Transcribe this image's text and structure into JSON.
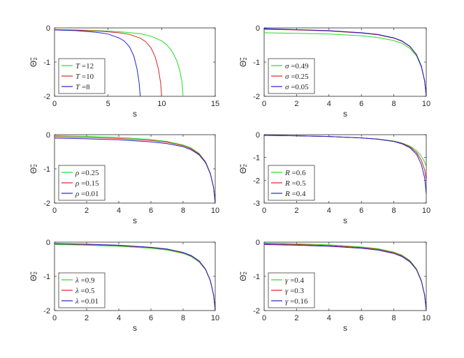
{
  "chart_data": [
    {
      "type": "line",
      "panel": "top-left",
      "xlabel": "s",
      "ylabel": "Θ̃₂",
      "xlim": [
        0,
        15
      ],
      "ylim": [
        -2,
        0
      ],
      "xticks": [
        0,
        5,
        10,
        15
      ],
      "yticks": [
        0,
        -1,
        -2
      ],
      "legend": "bottom-left",
      "series": [
        {
          "name": "T =12",
          "symbol": "T",
          "value": "=12",
          "color": "#22dd22",
          "x": [
            0,
            2,
            4,
            6,
            8,
            9,
            10,
            10.5,
            11,
            11.4,
            11.7,
            11.9,
            12
          ],
          "y": [
            -0.05,
            -0.06,
            -0.08,
            -0.11,
            -0.17,
            -0.24,
            -0.38,
            -0.5,
            -0.7,
            -0.95,
            -1.25,
            -1.6,
            -2.0
          ]
        },
        {
          "name": "T =10",
          "symbol": "T",
          "value": "=10",
          "color": "#dd2222",
          "x": [
            0,
            2,
            4,
            6,
            7,
            8,
            8.5,
            9,
            9.4,
            9.7,
            9.9,
            10
          ],
          "y": [
            -0.05,
            -0.07,
            -0.09,
            -0.14,
            -0.19,
            -0.3,
            -0.4,
            -0.58,
            -0.85,
            -1.2,
            -1.6,
            -2.0
          ]
        },
        {
          "name": "T =8",
          "symbol": "T",
          "value": "=8",
          "color": "#2222cc",
          "x": [
            0,
            2,
            4,
            5,
            6,
            6.5,
            7,
            7.4,
            7.7,
            7.9,
            8
          ],
          "y": [
            -0.06,
            -0.08,
            -0.13,
            -0.18,
            -0.29,
            -0.38,
            -0.55,
            -0.82,
            -1.2,
            -1.6,
            -2.0
          ]
        }
      ]
    },
    {
      "type": "line",
      "panel": "top-right",
      "xlabel": "s",
      "ylabel": "Θ̃₂",
      "xlim": [
        0,
        10
      ],
      "ylim": [
        -2,
        0
      ],
      "xticks": [
        0,
        2,
        4,
        6,
        8,
        10
      ],
      "yticks": [
        0,
        -1,
        -2
      ],
      "legend": "bottom-left",
      "series": [
        {
          "name": "σ =0.49",
          "symbol": "σ",
          "value": "=0.49",
          "color": "#22dd22",
          "x": [
            0,
            2,
            4,
            6,
            7,
            8,
            8.5,
            9,
            9.4,
            9.7,
            9.9,
            10
          ],
          "y": [
            -0.14,
            -0.16,
            -0.18,
            -0.23,
            -0.28,
            -0.37,
            -0.45,
            -0.6,
            -0.82,
            -1.15,
            -1.55,
            -2.0
          ]
        },
        {
          "name": "σ =0.25",
          "symbol": "σ",
          "value": "=0.25",
          "color": "#dd2222",
          "x": [
            0,
            2,
            4,
            6,
            7,
            8,
            8.5,
            9,
            9.4,
            9.7,
            9.9,
            10
          ],
          "y": [
            -0.04,
            -0.06,
            -0.09,
            -0.15,
            -0.2,
            -0.3,
            -0.39,
            -0.55,
            -0.79,
            -1.13,
            -1.55,
            -2.0
          ]
        },
        {
          "name": "σ =0.05",
          "symbol": "σ",
          "value": "=0.05",
          "color": "#2222cc",
          "x": [
            0,
            2,
            4,
            6,
            7,
            8,
            8.5,
            9,
            9.4,
            9.7,
            9.9,
            10
          ],
          "y": [
            -0.02,
            -0.05,
            -0.08,
            -0.14,
            -0.19,
            -0.29,
            -0.38,
            -0.54,
            -0.78,
            -1.12,
            -1.55,
            -2.0
          ]
        }
      ]
    },
    {
      "type": "line",
      "panel": "middle-left",
      "xlabel": "s",
      "ylabel": "Θ̃₂",
      "xlim": [
        0,
        10
      ],
      "ylim": [
        -2,
        0
      ],
      "xticks": [
        0,
        2,
        4,
        6,
        8,
        10
      ],
      "yticks": [
        0,
        -1,
        -2
      ],
      "legend": "bottom-left",
      "series": [
        {
          "name": "ρ =0.25",
          "symbol": "ρ",
          "value": "=0.25",
          "color": "#22dd22",
          "x": [
            0,
            2,
            4,
            6,
            7,
            8,
            8.5,
            9,
            9.4,
            9.7,
            9.9,
            10
          ],
          "y": [
            -0.03,
            -0.05,
            -0.08,
            -0.14,
            -0.2,
            -0.3,
            -0.39,
            -0.55,
            -0.79,
            -1.13,
            -1.55,
            -2.0
          ]
        },
        {
          "name": "ρ =0.15",
          "symbol": "ρ",
          "value": "=0.15",
          "color": "#dd2222",
          "x": [
            0,
            2,
            4,
            6,
            7,
            8,
            8.5,
            9,
            9.4,
            9.7,
            9.9,
            10
          ],
          "y": [
            -0.06,
            -0.08,
            -0.11,
            -0.17,
            -0.22,
            -0.32,
            -0.41,
            -0.57,
            -0.8,
            -1.14,
            -1.55,
            -2.0
          ]
        },
        {
          "name": "ρ =0.01",
          "symbol": "ρ",
          "value": "=0.01",
          "color": "#2222cc",
          "x": [
            0,
            2,
            4,
            6,
            7,
            8,
            8.5,
            9,
            9.4,
            9.7,
            9.9,
            10
          ],
          "y": [
            -0.1,
            -0.12,
            -0.15,
            -0.21,
            -0.26,
            -0.35,
            -0.44,
            -0.59,
            -0.82,
            -1.15,
            -1.55,
            -2.0
          ]
        }
      ]
    },
    {
      "type": "line",
      "panel": "middle-right",
      "xlabel": "s",
      "ylabel": "Θ̃₂",
      "xlim": [
        0,
        10
      ],
      "ylim": [
        -3,
        0
      ],
      "xticks": [
        0,
        2,
        4,
        6,
        8,
        10
      ],
      "yticks": [
        0,
        -1,
        -2,
        -3
      ],
      "legend": "bottom-left",
      "series": [
        {
          "name": "R =0.6",
          "symbol": "R",
          "value": "=0.6",
          "color": "#22dd22",
          "x": [
            0,
            2,
            4,
            6,
            7,
            8,
            8.5,
            9,
            9.4,
            9.7,
            9.9,
            10
          ],
          "y": [
            -0.03,
            -0.05,
            -0.08,
            -0.14,
            -0.19,
            -0.28,
            -0.36,
            -0.5,
            -0.7,
            -0.95,
            -1.2,
            -1.4
          ]
        },
        {
          "name": "R =0.5",
          "symbol": "R",
          "value": "=0.5",
          "color": "#dd2222",
          "x": [
            0,
            2,
            4,
            6,
            7,
            8,
            8.5,
            9,
            9.4,
            9.7,
            9.9,
            10
          ],
          "y": [
            -0.03,
            -0.05,
            -0.08,
            -0.14,
            -0.19,
            -0.29,
            -0.38,
            -0.54,
            -0.78,
            -1.12,
            -1.55,
            -2.0
          ]
        },
        {
          "name": "R =0.4",
          "symbol": "R",
          "value": "=0.4",
          "color": "#2222cc",
          "x": [
            0,
            2,
            4,
            6,
            7,
            8,
            8.5,
            9,
            9.4,
            9.7,
            9.9,
            10
          ],
          "y": [
            -0.03,
            -0.05,
            -0.08,
            -0.14,
            -0.2,
            -0.3,
            -0.4,
            -0.58,
            -0.86,
            -1.3,
            -1.9,
            -2.6
          ]
        }
      ]
    },
    {
      "type": "line",
      "panel": "bottom-left",
      "xlabel": "s",
      "ylabel": "Θ̃₂",
      "xlim": [
        0,
        10
      ],
      "ylim": [
        -2,
        0
      ],
      "xticks": [
        0,
        2,
        4,
        6,
        8,
        10
      ],
      "yticks": [
        0,
        -1,
        -2
      ],
      "legend": "bottom-left",
      "series": [
        {
          "name": "λ =0.9",
          "symbol": "λ",
          "value": "=0.9",
          "color": "#22dd22",
          "x": [
            0,
            2,
            4,
            6,
            7,
            8,
            8.5,
            9,
            9.4,
            9.7,
            9.9,
            10
          ],
          "y": [
            -0.07,
            -0.09,
            -0.12,
            -0.18,
            -0.23,
            -0.33,
            -0.42,
            -0.58,
            -0.81,
            -1.14,
            -1.55,
            -2.0
          ]
        },
        {
          "name": "λ =0.5",
          "symbol": "λ",
          "value": "=0.5",
          "color": "#dd2222",
          "x": [
            0,
            2,
            4,
            6,
            7,
            8,
            8.5,
            9,
            9.4,
            9.7,
            9.9,
            10
          ],
          "y": [
            -0.05,
            -0.07,
            -0.1,
            -0.16,
            -0.21,
            -0.31,
            -0.4,
            -0.56,
            -0.8,
            -1.13,
            -1.55,
            -2.0
          ]
        },
        {
          "name": "λ =0.01",
          "symbol": "λ",
          "value": "=0.01",
          "color": "#2222cc",
          "x": [
            0,
            2,
            4,
            6,
            7,
            8,
            8.5,
            9,
            9.4,
            9.7,
            9.9,
            10
          ],
          "y": [
            -0.04,
            -0.06,
            -0.09,
            -0.15,
            -0.2,
            -0.3,
            -0.39,
            -0.55,
            -0.79,
            -1.13,
            -1.55,
            -2.0
          ]
        }
      ]
    },
    {
      "type": "line",
      "panel": "bottom-right",
      "xlabel": "s",
      "ylabel": "Θ̃₂",
      "xlim": [
        0,
        10
      ],
      "ylim": [
        -2,
        0
      ],
      "xticks": [
        0,
        2,
        4,
        6,
        8,
        10
      ],
      "yticks": [
        0,
        -1,
        -2
      ],
      "legend": "bottom-left",
      "series": [
        {
          "name": "γ =0.4",
          "symbol": "γ",
          "value": "=0.4",
          "color": "#22dd22",
          "x": [
            0,
            2,
            4,
            6,
            7,
            8,
            8.5,
            9,
            9.4,
            9.7,
            9.9,
            10
          ],
          "y": [
            -0.03,
            -0.05,
            -0.08,
            -0.14,
            -0.19,
            -0.29,
            -0.38,
            -0.54,
            -0.78,
            -1.12,
            -1.55,
            -2.0
          ]
        },
        {
          "name": "γ =0.3",
          "symbol": "γ",
          "value": "=0.3",
          "color": "#dd2222",
          "x": [
            0,
            2,
            4,
            6,
            7,
            8,
            8.5,
            9,
            9.4,
            9.7,
            9.9,
            10
          ],
          "y": [
            -0.05,
            -0.07,
            -0.1,
            -0.16,
            -0.21,
            -0.31,
            -0.4,
            -0.56,
            -0.8,
            -1.13,
            -1.55,
            -2.0
          ]
        },
        {
          "name": "γ =0.16",
          "symbol": "γ",
          "value": "=0.16",
          "color": "#2222cc",
          "x": [
            0,
            2,
            4,
            6,
            7,
            8,
            8.5,
            9,
            9.4,
            9.7,
            9.9,
            10
          ],
          "y": [
            -0.07,
            -0.09,
            -0.12,
            -0.18,
            -0.23,
            -0.33,
            -0.42,
            -0.58,
            -0.81,
            -1.14,
            -1.55,
            -2.0
          ]
        }
      ]
    }
  ]
}
